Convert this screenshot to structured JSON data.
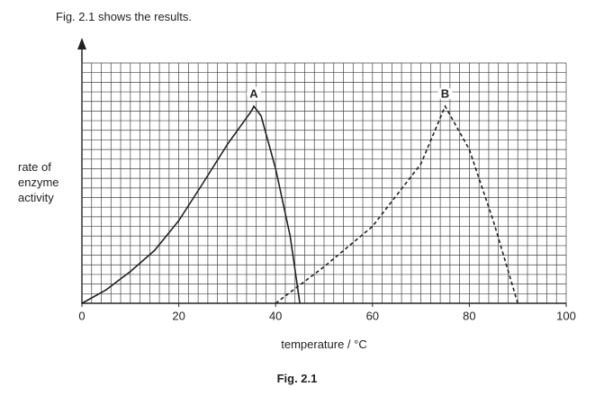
{
  "header": "Fig. 2.1 shows the results.",
  "chart_data": {
    "type": "line",
    "ylabel": "rate of enzyme activity",
    "xlabel": "temperature / °C",
    "caption": "Fig. 2.1",
    "xlim": [
      0,
      100
    ],
    "ylim": [
      0,
      25
    ],
    "xticks": [
      0,
      20,
      40,
      60,
      80,
      100
    ],
    "grid": {
      "x": 2,
      "y": 1
    },
    "series": [
      {
        "name": "A",
        "color": "#222222",
        "style": "solid",
        "x": [
          0,
          5,
          10,
          15,
          20,
          25,
          30,
          35,
          35.5,
          37,
          40,
          43,
          45
        ],
        "values": [
          0,
          1.4,
          3.3,
          5.5,
          8.6,
          12.5,
          16.5,
          20,
          20.5,
          19.5,
          14,
          7,
          0
        ]
      },
      {
        "name": "B",
        "color": "#222222",
        "style": "dashed",
        "x": [
          40,
          50,
          60,
          70,
          75,
          80,
          85,
          90
        ],
        "values": [
          0,
          3.8,
          8,
          14.5,
          20.5,
          16,
          8.5,
          0
        ]
      }
    ]
  }
}
